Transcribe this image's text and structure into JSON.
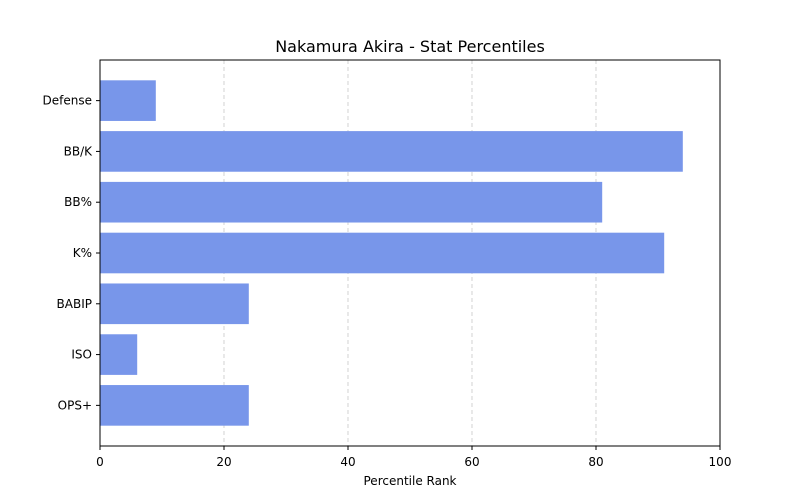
{
  "chart_data": {
    "type": "bar",
    "orientation": "horizontal",
    "title": "Nakamura Akira - Stat Percentiles",
    "xlabel": "Percentile Rank",
    "ylabel": "",
    "categories": [
      "OPS+",
      "ISO",
      "BABIP",
      "K%",
      "BB%",
      "BB/K",
      "Defense"
    ],
    "values": [
      24,
      6,
      24,
      91,
      81,
      94,
      9
    ],
    "xlim": [
      0,
      100
    ],
    "xticks": [
      0,
      20,
      40,
      60,
      80,
      100
    ],
    "grid": "x-dashed",
    "bar_color": "#7896ea"
  }
}
